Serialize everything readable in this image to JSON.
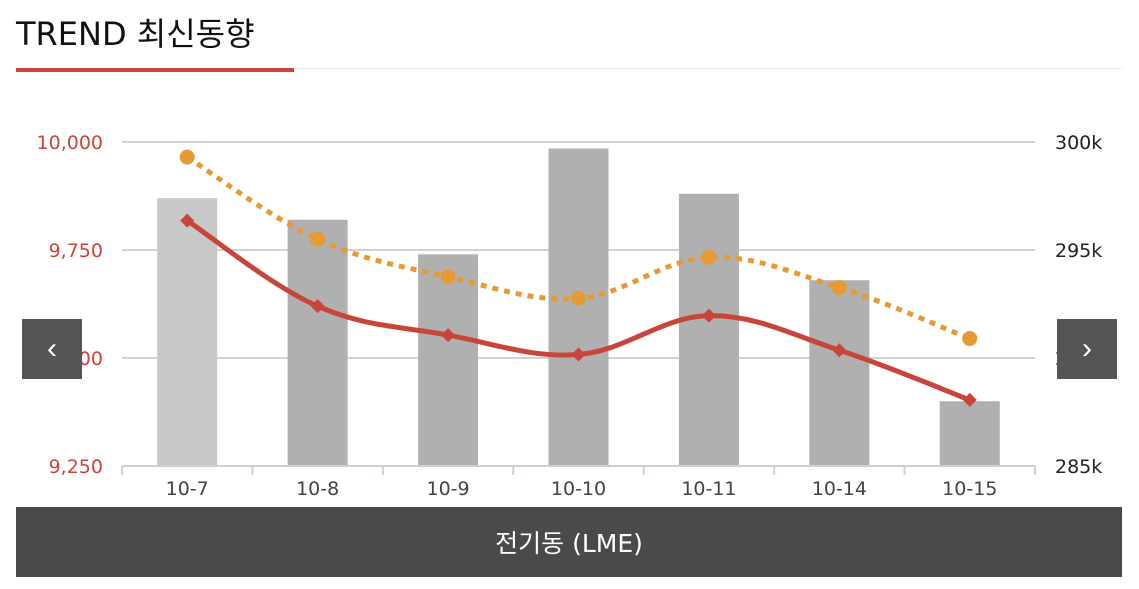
{
  "header": {
    "title": "TREND 최신동향"
  },
  "colors": {
    "accent": "#c8453b",
    "bar_first": "#c8c8c8",
    "bar": "#b0b0b0",
    "line_dotted": "#e69a35",
    "line_solid": "#c8453b",
    "axis_right_text": "#222222",
    "tick_text": "#444444",
    "grid": "#c4c4c4",
    "footer_bg": "#4a4a4a",
    "nav_bg": "#555555"
  },
  "nav": {
    "prev_icon": "chevron-left-icon",
    "prev_glyph": "‹",
    "next_icon": "chevron-right-icon",
    "next_glyph": "›"
  },
  "footer": {
    "label": "전기동 (LME)"
  },
  "chart_data": {
    "type": "bar",
    "categories": [
      "10-7",
      "10-8",
      "10-9",
      "10-10",
      "10-11",
      "10-14",
      "10-15"
    ],
    "y_left": {
      "ylim": [
        9250,
        10000
      ],
      "ticks": [
        10000,
        9750,
        9500,
        9250
      ],
      "tick_labels": [
        "10,000",
        "9,750",
        "9,500",
        "9,250"
      ]
    },
    "y_right": {
      "ylim": [
        285,
        300
      ],
      "ticks": [
        300,
        295,
        290,
        285
      ],
      "tick_labels": [
        "300k",
        "295k",
        "290k",
        "285k"
      ]
    },
    "grid": true,
    "legend": "none",
    "series": [
      {
        "type": "bar",
        "axis": "right",
        "values": [
          297.4,
          296.4,
          294.8,
          299.7,
          297.6,
          293.6,
          288.0
        ]
      },
      {
        "type": "line-dotted",
        "axis": "left",
        "values": [
          9965,
          9775,
          9688,
          9638,
          9733,
          9663,
          9545
        ]
      },
      {
        "type": "line-solid",
        "axis": "left",
        "values": [
          9818,
          9620,
          9553,
          9508,
          9598,
          9518,
          9403
        ]
      }
    ]
  }
}
